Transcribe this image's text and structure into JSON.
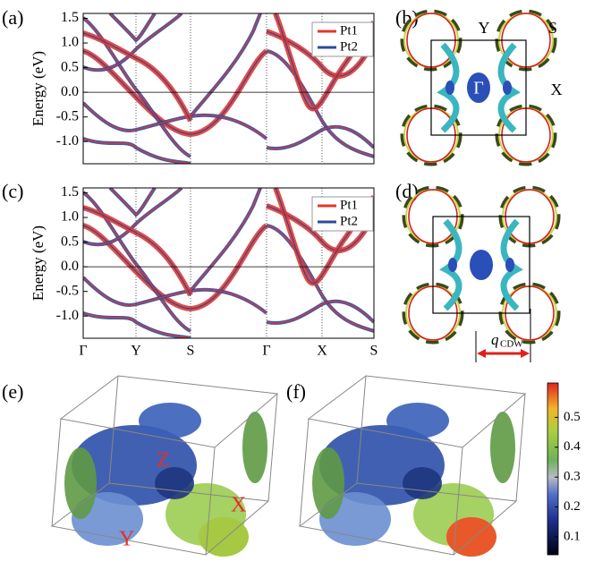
{
  "panels": {
    "a": "(a)",
    "b": "(b)",
    "c": "(c)",
    "d": "(d)",
    "e": "(e)",
    "f": "(f)"
  },
  "bands": {
    "ylabel": "Energy (eV)",
    "ylim": [
      -1.45,
      1.6
    ],
    "yticks": [
      1.5,
      {
        "value": 1,
        "label": "1.0"
      },
      0.5,
      {
        "value": 0,
        "label": "0.0"
      },
      -0.5,
      {
        "value": -1,
        "label": "-1.0"
      }
    ],
    "kpath": [
      "Γ",
      "Y",
      "S",
      "Γ",
      "X",
      "S"
    ],
    "legend": [
      {
        "name": "Pt1",
        "color": "#e5352b"
      },
      {
        "name": "Pt2",
        "color": "#2b4a9e"
      }
    ]
  },
  "bz_labels": {
    "Y": "Y",
    "S": "S",
    "G": "Γ",
    "X": "X"
  },
  "fs_labels": {
    "Z": "Z",
    "X": "X",
    "Y": "Y"
  },
  "q": {
    "symbol": "q",
    "subscript": "CDW"
  },
  "colorbar": {
    "lim": [
      0.04,
      0.615
    ],
    "ticks": [
      0.1,
      0.2,
      0.3,
      0.4,
      0.5
    ]
  }
}
